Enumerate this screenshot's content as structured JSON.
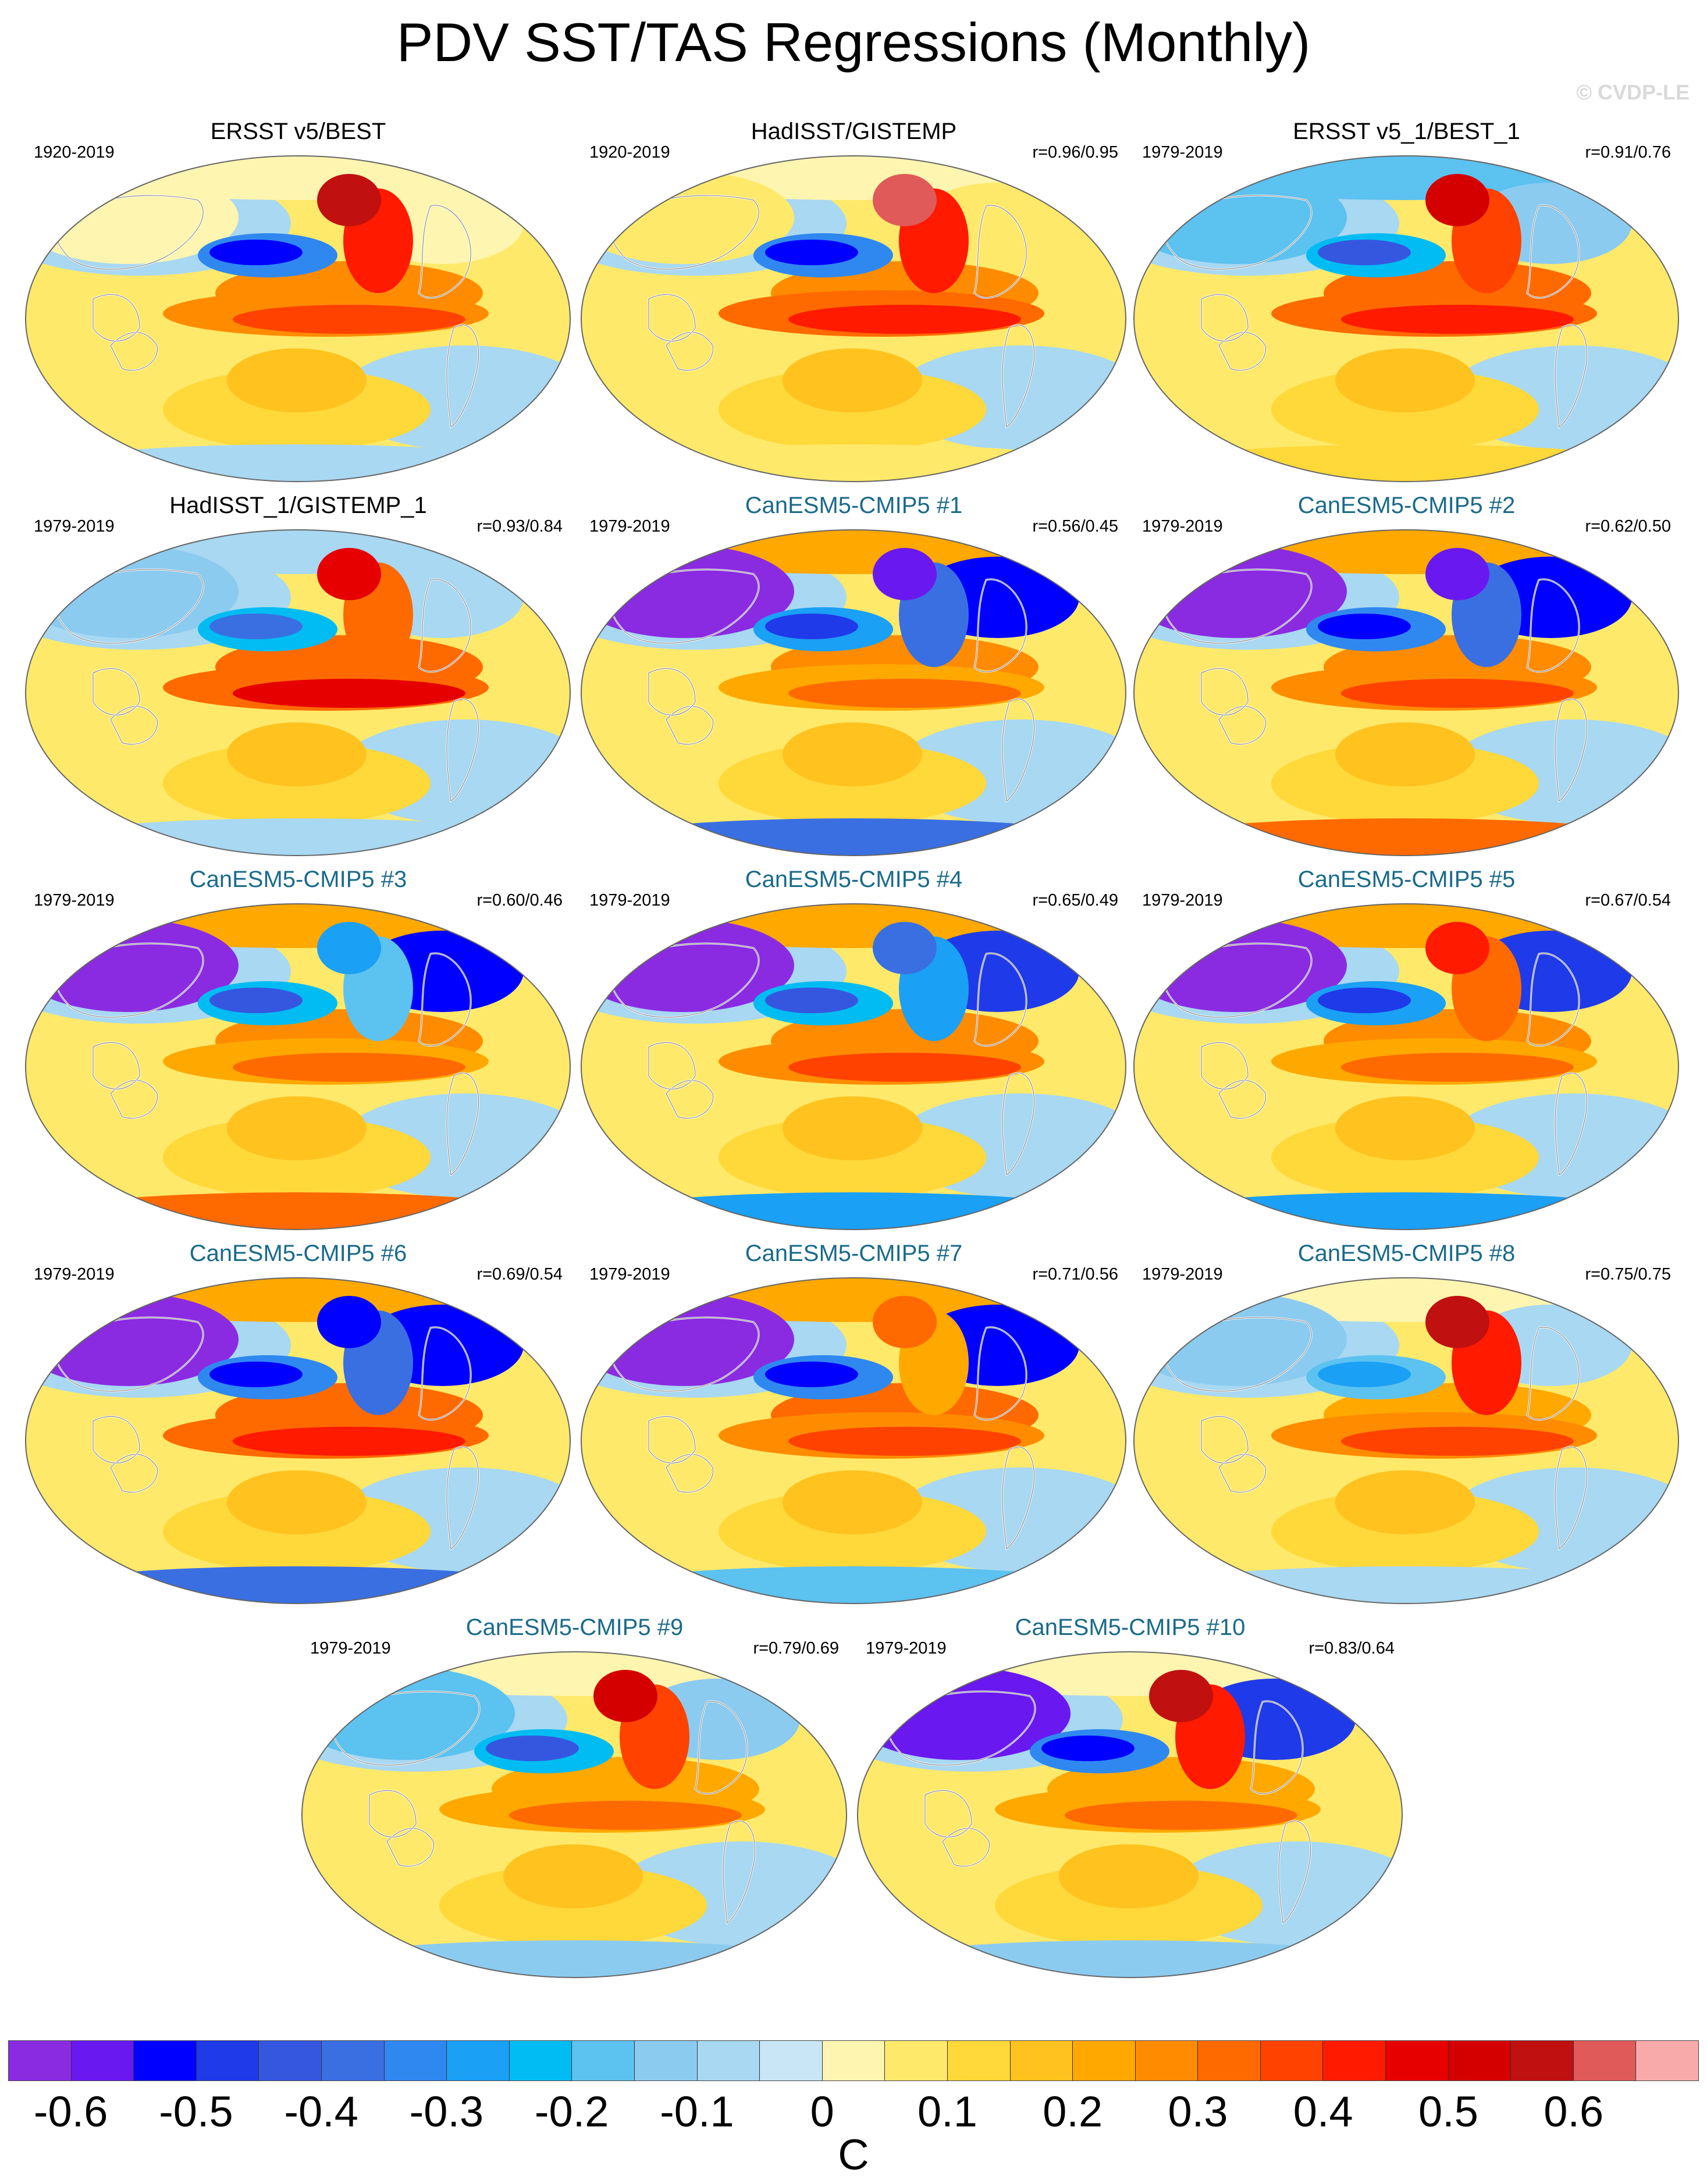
{
  "title": "PDV SST/TAS Regressions (Monthly)",
  "copyright": "© CVDP-LE",
  "panels": [
    {
      "title": "ERSST v5/BEST",
      "years": "1920-2019",
      "corr": "",
      "kind": "obs",
      "pattern": {
        "arctic": 0,
        "alaska": 0.55,
        "kuro": -0.55,
        "npac": 0.25,
        "nino": 0.35,
        "siberia": 0,
        "south": -0.1
      }
    },
    {
      "title": "HadISST/GISTEMP",
      "years": "1920-2019",
      "corr": "r=0.96/0.95",
      "kind": "obs",
      "pattern": {
        "arctic": 0,
        "alaska": 0.6,
        "kuro": -0.55,
        "npac": 0.25,
        "nino": 0.4,
        "siberia": 0.05,
        "south": 0.05
      }
    },
    {
      "title": "ERSST v5_1/BEST_1",
      "years": "1979-2019",
      "corr": "r=0.91/0.76",
      "kind": "obs",
      "pattern": {
        "arctic": -0.2,
        "alaska": 0.5,
        "kuro": -0.45,
        "npac": 0.3,
        "nino": 0.4,
        "siberia": -0.2,
        "south": 0.1
      }
    },
    {
      "title": "HadISST_1/GISTEMP_1",
      "years": "1979-2019",
      "corr": "r=0.93/0.84",
      "kind": "obs",
      "pattern": {
        "arctic": -0.1,
        "alaska": 0.45,
        "kuro": -0.4,
        "npac": 0.3,
        "nino": 0.45,
        "siberia": -0.15,
        "south": -0.1
      }
    },
    {
      "title": "CanESM5-CMIP5 #1",
      "years": "1979-2019",
      "corr": "r=0.56/0.45",
      "kind": "model",
      "pattern": {
        "arctic": 0.2,
        "alaska": -0.6,
        "kuro": -0.5,
        "npac": 0.25,
        "nino": 0.3,
        "siberia": -0.7,
        "south": -0.4
      }
    },
    {
      "title": "CanESM5-CMIP5 #2",
      "years": "1979-2019",
      "corr": "r=0.62/0.50",
      "kind": "model",
      "pattern": {
        "arctic": 0.2,
        "alaska": -0.6,
        "kuro": -0.55,
        "npac": 0.25,
        "nino": 0.35,
        "siberia": -0.7,
        "south": 0.3
      }
    },
    {
      "title": "CanESM5-CMIP5 #3",
      "years": "1979-2019",
      "corr": "r=0.60/0.46",
      "kind": "model",
      "pattern": {
        "arctic": 0.2,
        "alaska": -0.3,
        "kuro": -0.45,
        "npac": 0.25,
        "nino": 0.3,
        "siberia": -0.7,
        "south": 0.3
      }
    },
    {
      "title": "CanESM5-CMIP5 #4",
      "years": "1979-2019",
      "corr": "r=0.65/0.49",
      "kind": "model",
      "pattern": {
        "arctic": 0.2,
        "alaska": -0.4,
        "kuro": -0.45,
        "npac": 0.25,
        "nino": 0.35,
        "siberia": -0.65,
        "south": -0.3
      }
    },
    {
      "title": "CanESM5-CMIP5 #5",
      "years": "1979-2019",
      "corr": "r=0.67/0.54",
      "kind": "model",
      "pattern": {
        "arctic": 0.2,
        "alaska": 0.4,
        "kuro": -0.5,
        "npac": 0.25,
        "nino": 0.3,
        "siberia": -0.65,
        "south": -0.3
      }
    },
    {
      "title": "CanESM5-CMIP5 #6",
      "years": "1979-2019",
      "corr": "r=0.69/0.54",
      "kind": "model",
      "pattern": {
        "arctic": 0.2,
        "alaska": -0.55,
        "kuro": -0.55,
        "npac": 0.3,
        "nino": 0.4,
        "siberia": -0.7,
        "south": -0.4
      }
    },
    {
      "title": "CanESM5-CMIP5 #7",
      "years": "1979-2019",
      "corr": "r=0.71/0.56",
      "kind": "model",
      "pattern": {
        "arctic": 0.2,
        "alaska": 0.3,
        "kuro": -0.55,
        "npac": 0.3,
        "nino": 0.35,
        "siberia": -0.7,
        "south": -0.2
      }
    },
    {
      "title": "CanESM5-CMIP5 #8",
      "years": "1979-2019",
      "corr": "r=0.75/0.75",
      "kind": "model",
      "pattern": {
        "arctic": 0,
        "alaska": 0.55,
        "kuro": -0.3,
        "npac": 0.2,
        "nino": 0.35,
        "siberia": -0.15,
        "south": -0.1
      }
    },
    {
      "title": "CanESM5-CMIP5 #9",
      "years": "1979-2019",
      "corr": "r=0.79/0.69",
      "kind": "model",
      "pattern": {
        "arctic": 0,
        "alaska": 0.5,
        "kuro": -0.45,
        "npac": 0.2,
        "nino": 0.3,
        "siberia": -0.2,
        "south": -0.15
      }
    },
    {
      "title": "CanESM5-CMIP5 #10",
      "years": "1979-2019",
      "corr": "r=0.83/0.64",
      "kind": "model",
      "pattern": {
        "arctic": 0,
        "alaska": 0.55,
        "kuro": -0.55,
        "npac": 0.2,
        "nino": 0.3,
        "siberia": -0.6,
        "south": -0.15
      }
    }
  ],
  "colorbar": {
    "colors": [
      "#8a2be2",
      "#6a18f0",
      "#0000ff",
      "#1f3ae8",
      "#3557e0",
      "#3a6fe2",
      "#2f88f0",
      "#1aa0f5",
      "#00bcf2",
      "#5cc2f0",
      "#8ccbf0",
      "#a8d8f2",
      "#c8e6f5",
      "#fef5b0",
      "#ffe96a",
      "#ffd83a",
      "#ffc21f",
      "#ffa800",
      "#ff8c00",
      "#ff6a00",
      "#ff4200",
      "#ff1a00",
      "#e60000",
      "#d40000",
      "#c01010",
      "#e05a5a",
      "#f8aaaa"
    ],
    "tick_labels": [
      "-0.6",
      "-0.5",
      "-0.4",
      "-0.3",
      "-0.2",
      "-0.1",
      "0",
      "0.1",
      "0.2",
      "0.3",
      "0.4",
      "0.5",
      "0.6"
    ],
    "unit": "C",
    "levels_min": -0.65,
    "levels_step": 0.05
  }
}
